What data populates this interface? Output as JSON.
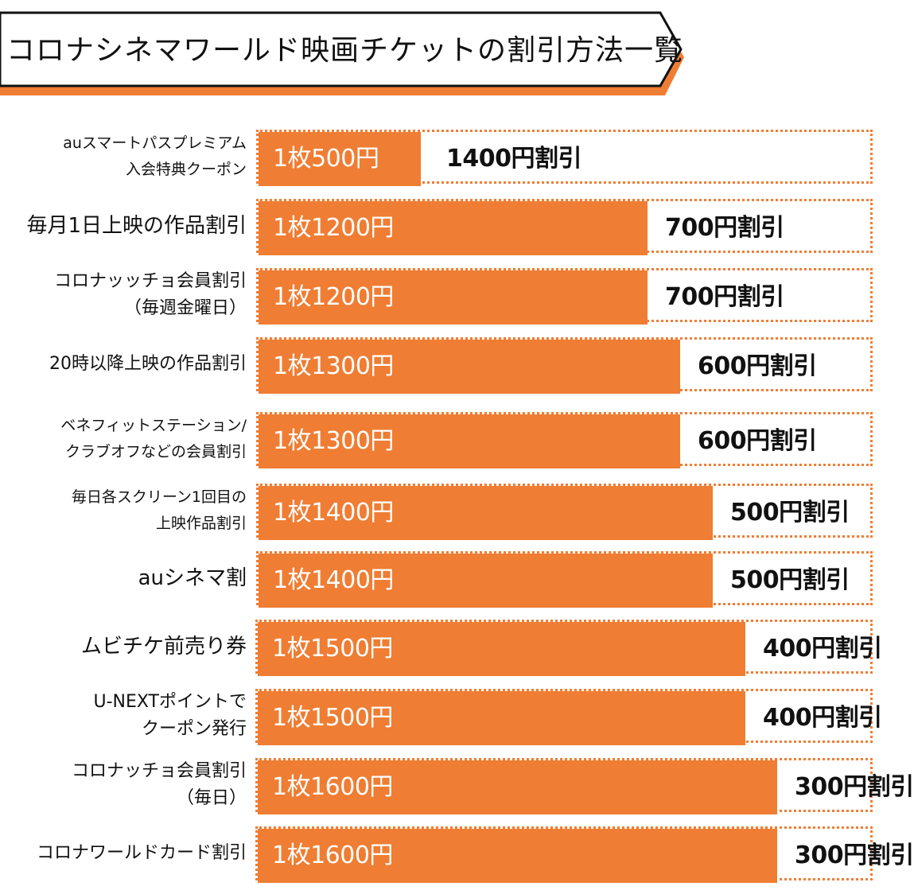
{
  "title": "コロナシネマワールド映画チケットの割引方法一覧",
  "colors": {
    "bar": "#ef7d33",
    "banner_shadow": "#ef7d33",
    "text": "#111111",
    "bar_text": "#ffffff"
  },
  "chart_data": {
    "type": "bar",
    "orientation": "horizontal",
    "stacked": true,
    "total_per_row": 1900,
    "categories": [
      [
        "auスマートパスプレミアム",
        "入会特典クーポン"
      ],
      [
        "毎月1日上映の作品割引"
      ],
      [
        "コロナッッチョ会員割引",
        "（毎週金曜日）"
      ],
      [
        "20時以降上映の作品割引"
      ],
      [
        "ベネフィットステーション/",
        "クラブオフなどの会員割引"
      ],
      [
        "毎日各スクリーン1回目の",
        "上映作品割引"
      ],
      [
        "auシネマ割"
      ],
      [
        "ムビチケ前売り券"
      ],
      [
        "U-NEXTポイントで",
        "クーポン発行"
      ],
      [
        "コロナッチョ会員割引",
        "（毎日）"
      ],
      [
        "コロナワールドカード割引"
      ]
    ],
    "series": [
      {
        "values": [
          500,
          1200,
          1200,
          1300,
          1300,
          1400,
          1400,
          1500,
          1500,
          1600,
          1600
        ]
      },
      {
        "values": [
          1400,
          700,
          700,
          600,
          600,
          500,
          500,
          400,
          400,
          300,
          300
        ]
      }
    ],
    "price_labels": [
      "1枚500円",
      "1枚1200円",
      "1枚1200円",
      "1枚1300円",
      "1枚1300円",
      "1枚1400円",
      "1枚1400円",
      "1枚1500円",
      "1枚1500円",
      "1枚1600円",
      "1枚1600円"
    ],
    "discount_labels": [
      "1400円割引",
      "700円割引",
      "700円割引",
      "600円割引",
      "600円割引",
      "500円割引",
      "500円割引",
      "400円割引",
      "400円割引",
      "300円割引",
      "300円割引"
    ],
    "grid": false,
    "legend": "none"
  }
}
